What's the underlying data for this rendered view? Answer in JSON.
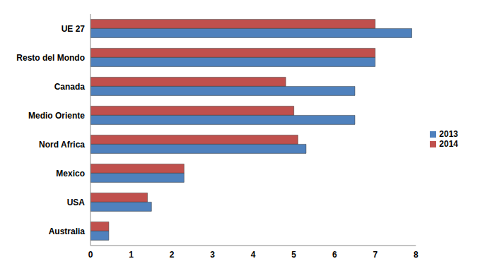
{
  "chart_data": {
    "type": "bar",
    "orientation": "horizontal",
    "categories": [
      "UE 27",
      "Resto del Mondo",
      "Canada",
      "Medio Oriente",
      "Nord Africa",
      "Mexico",
      "USA",
      "Australia"
    ],
    "series": [
      {
        "name": "2014",
        "color": "#c0504d",
        "values": [
          7.0,
          7.0,
          4.8,
          5.0,
          5.1,
          2.3,
          1.4,
          0.45
        ]
      },
      {
        "name": "2013",
        "color": "#4f81bd",
        "values": [
          7.9,
          7.0,
          6.5,
          6.5,
          5.3,
          2.3,
          1.5,
          0.45
        ]
      }
    ],
    "xlim": [
      0,
      8
    ],
    "xticks": [
      0,
      1,
      2,
      3,
      4,
      5,
      6,
      7,
      8
    ],
    "grid": false,
    "legend": "right"
  }
}
